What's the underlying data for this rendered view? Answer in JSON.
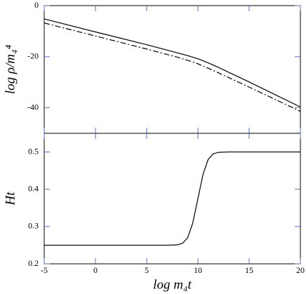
{
  "chart_data": [
    {
      "type": "line",
      "ylabel": "log ρ/m₄⁴",
      "x": [
        -5,
        0,
        5,
        8,
        9,
        10,
        11,
        12,
        15,
        20
      ],
      "series": [
        {
          "color": "#000000",
          "style": "solid",
          "values": [
            -5.2,
            -10.3,
            -15.3,
            -18.5,
            -19.6,
            -20.8,
            -22.4,
            -24.2,
            -29.9,
            -39.7
          ]
        },
        {
          "color": "#000000",
          "style": "dashdot",
          "values": [
            -6.8,
            -11.9,
            -17,
            -20.2,
            -21.4,
            -22.8,
            -24.5,
            -26.3,
            -31.9,
            -41.4
          ]
        }
      ],
      "xlim": [
        -5,
        20
      ],
      "xticks": [
        -5,
        0,
        5,
        10,
        15,
        20
      ],
      "ylim": [
        -50,
        0
      ],
      "yticks": [
        0,
        -20,
        -40
      ]
    },
    {
      "type": "line",
      "xlabel": "log m₄t",
      "ylabel": "Ht",
      "x": [
        -5,
        7,
        8,
        8.5,
        9,
        9.5,
        10,
        10.5,
        11,
        11.5,
        12,
        13,
        20
      ],
      "series": [
        {
          "color": "#000000",
          "style": "solid",
          "values": [
            0.25,
            0.25,
            0.251,
            0.255,
            0.27,
            0.31,
            0.375,
            0.44,
            0.48,
            0.495,
            0.499,
            0.5,
            0.5
          ]
        }
      ],
      "xlim": [
        -5,
        20
      ],
      "xticks": [
        -5,
        0,
        5,
        10,
        15,
        20
      ],
      "ylim": [
        0.2,
        0.55
      ],
      "yticks": [
        0.2,
        0.3,
        0.4,
        0.5
      ]
    }
  ]
}
